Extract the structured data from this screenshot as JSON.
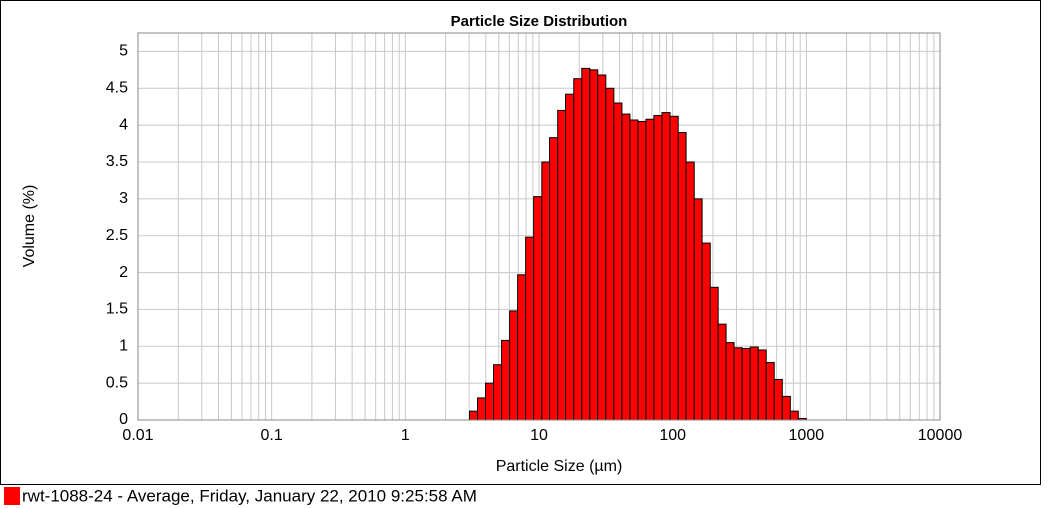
{
  "chart_data": {
    "type": "histogram",
    "title": "Particle Size Distribution",
    "xlabel": "Particle Size (µm)",
    "ylabel": "Volume (%)",
    "bins": [
      3.02,
      3.47,
      3.98,
      4.57,
      5.25,
      6.03,
      6.92,
      7.94,
      9.12,
      10.5,
      12.0,
      13.8,
      15.8,
      18.2,
      20.9,
      24.0,
      27.5,
      31.6,
      36.3,
      41.7,
      47.9,
      55.0,
      63.1,
      72.4,
      83.2,
      95.5,
      110,
      126,
      145,
      166,
      191,
      219,
      251,
      288,
      331,
      380,
      437,
      501,
      575,
      661,
      759,
      871,
      1000
    ],
    "series": [
      {
        "name": "rwt-1088-24 - Average, Friday, January 22, 2010 9:25:58 AM",
        "color": "#ff0000",
        "values": [
          0.12,
          0.3,
          0.5,
          0.75,
          1.08,
          1.48,
          1.97,
          2.48,
          3.03,
          3.5,
          3.83,
          4.2,
          4.42,
          4.63,
          4.77,
          4.75,
          4.68,
          4.5,
          4.3,
          4.15,
          4.07,
          4.05,
          4.08,
          4.13,
          4.17,
          4.12,
          3.9,
          3.5,
          3.0,
          2.4,
          1.8,
          1.3,
          1.05,
          0.98,
          0.97,
          0.99,
          0.95,
          0.78,
          0.55,
          0.32,
          0.12,
          0.02
        ]
      }
    ],
    "xscale": "log",
    "xlim": [
      0.01,
      10000
    ],
    "xticks": [
      0.01,
      0.1,
      1,
      10,
      100,
      1000,
      10000
    ],
    "ylim": [
      0,
      5.25
    ],
    "yticks": [
      0,
      0.5,
      1,
      1.5,
      2,
      2.5,
      3,
      3.5,
      4,
      4.5,
      5
    ],
    "grid": true,
    "legend": "bottom-left"
  }
}
